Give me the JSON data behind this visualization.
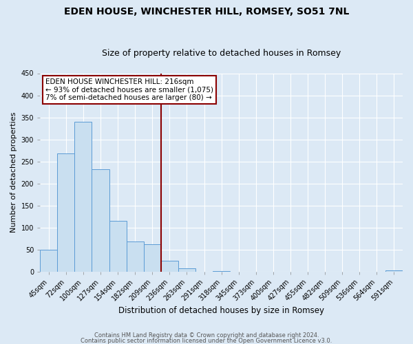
{
  "title": "EDEN HOUSE, WINCHESTER HILL, ROMSEY, SO51 7NL",
  "subtitle": "Size of property relative to detached houses in Romsey",
  "xlabel": "Distribution of detached houses by size in Romsey",
  "ylabel": "Number of detached properties",
  "bar_labels": [
    "45sqm",
    "72sqm",
    "100sqm",
    "127sqm",
    "154sqm",
    "182sqm",
    "209sqm",
    "236sqm",
    "263sqm",
    "291sqm",
    "318sqm",
    "345sqm",
    "373sqm",
    "400sqm",
    "427sqm",
    "455sqm",
    "482sqm",
    "509sqm",
    "536sqm",
    "564sqm",
    "591sqm"
  ],
  "bar_values": [
    50,
    268,
    340,
    232,
    115,
    68,
    62,
    25,
    8,
    0,
    2,
    0,
    0,
    0,
    0,
    0,
    0,
    0,
    0,
    0,
    3
  ],
  "bar_color": "#c9dff0",
  "bar_edge_color": "#5b9bd5",
  "ylim": [
    0,
    450
  ],
  "yticks": [
    0,
    50,
    100,
    150,
    200,
    250,
    300,
    350,
    400,
    450
  ],
  "vline_x": 6.5,
  "vline_color": "#8b0000",
  "annotation_title": "EDEN HOUSE WINCHESTER HILL: 216sqm",
  "annotation_line1": "← 93% of detached houses are smaller (1,075)",
  "annotation_line2": "7% of semi-detached houses are larger (80) →",
  "annotation_box_color": "#ffffff",
  "annotation_box_edge_color": "#8b0000",
  "footer1": "Contains HM Land Registry data © Crown copyright and database right 2024.",
  "footer2": "Contains public sector information licensed under the Open Government Licence v3.0.",
  "background_color": "#dce9f5",
  "plot_bg_color": "#dce9f5",
  "grid_color": "#ffffff",
  "title_fontsize": 10,
  "subtitle_fontsize": 9,
  "xlabel_fontsize": 8.5,
  "ylabel_fontsize": 8,
  "tick_fontsize": 7,
  "annotation_fontsize": 7.5,
  "footer_fontsize": 6
}
